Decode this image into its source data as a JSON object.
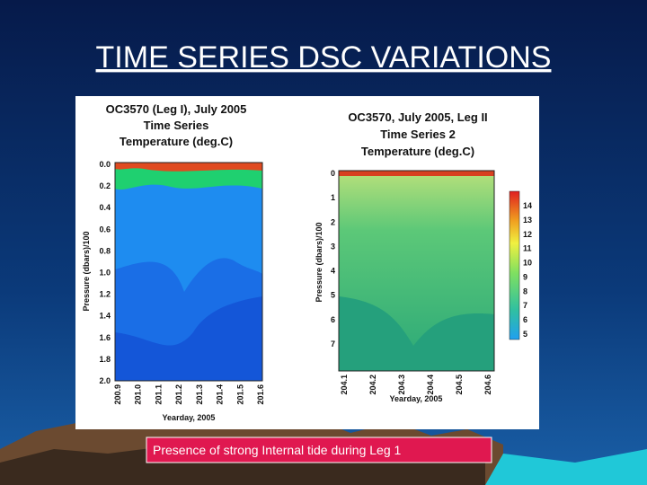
{
  "title": "TIME SERIES DSC VARIATIONS",
  "panels": [
    {
      "title_lines": [
        "OC3570 (Leg I), July 2005",
        "Time Series",
        "Temperature (deg.C)"
      ],
      "y_label": "Pressure (dbars)/100",
      "x_label": "Yearday, 2005",
      "y_ticks": [
        "0.0",
        "0.2",
        "0.4",
        "0.6",
        "0.8",
        "1.0",
        "1.2",
        "1.4",
        "1.6",
        "1.8",
        "2.0"
      ],
      "x_ticks": [
        "200.9",
        "201.0",
        "201.1",
        "201.2",
        "201.3",
        "201.4",
        "201.5",
        "201.6"
      ]
    },
    {
      "title_lines": [
        "OC3570, July 2005, Leg II",
        "Time Series 2",
        "Temperature (deg.C)"
      ],
      "y_label": "Pressure (dbars)/100",
      "x_label": "Yearday, 2005",
      "y_ticks": [
        "0",
        "1",
        "2",
        "3",
        "4",
        "5",
        "6",
        "7"
      ],
      "x_ticks": [
        "204.1",
        "204.2",
        "204.3",
        "204.4",
        "204.5",
        "204.6"
      ],
      "colorbar_ticks": [
        "14",
        "13",
        "12",
        "11",
        "10",
        "9",
        "8",
        "7",
        "6",
        "5"
      ]
    }
  ],
  "caption": "Presence of strong Internal tide during Leg 1"
}
